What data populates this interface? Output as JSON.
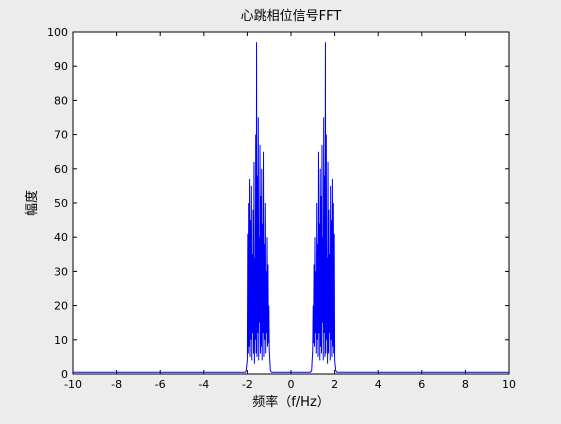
{
  "chart_data": {
    "type": "line",
    "title": "心跳相位信号FFT",
    "xlabel": "频率（f/Hz）",
    "ylabel": "幅度",
    "xlim": [
      -10,
      10
    ],
    "ylim": [
      0,
      100
    ],
    "xticks": [
      -10,
      -8,
      -6,
      -4,
      -2,
      0,
      2,
      4,
      6,
      8,
      10
    ],
    "yticks": [
      0,
      10,
      20,
      30,
      40,
      50,
      60,
      70,
      80,
      90,
      100
    ],
    "grid": false,
    "line_color": "#0000ff",
    "series": [
      {
        "x": [
          -10,
          -2.1,
          -2.05,
          -2.0,
          -1.98,
          -1.96,
          -1.94,
          -1.92,
          -1.9,
          -1.88,
          -1.86,
          -1.84,
          -1.82,
          -1.8,
          -1.78,
          -1.76,
          -1.74,
          -1.72,
          -1.7,
          -1.68,
          -1.66,
          -1.64,
          -1.62,
          -1.6,
          -1.58,
          -1.56,
          -1.54,
          -1.52,
          -1.5,
          -1.48,
          -1.46,
          -1.44,
          -1.42,
          -1.4,
          -1.38,
          -1.36,
          -1.34,
          -1.32,
          -1.3,
          -1.28,
          -1.26,
          -1.24,
          -1.22,
          -1.2,
          -1.18,
          -1.16,
          -1.14,
          -1.12,
          -1.1,
          -1.08,
          -1.06,
          -1.04,
          -1.02,
          -1.0,
          -0.95,
          -0.9,
          0.9,
          0.95,
          1.0,
          1.02,
          1.04,
          1.06,
          1.08,
          1.1,
          1.12,
          1.14,
          1.16,
          1.18,
          1.2,
          1.22,
          1.24,
          1.26,
          1.28,
          1.3,
          1.32,
          1.34,
          1.36,
          1.38,
          1.4,
          1.42,
          1.44,
          1.46,
          1.48,
          1.5,
          1.52,
          1.54,
          1.56,
          1.58,
          1.6,
          1.62,
          1.64,
          1.66,
          1.68,
          1.7,
          1.72,
          1.74,
          1.76,
          1.78,
          1.8,
          1.82,
          1.84,
          1.86,
          1.88,
          1.9,
          1.92,
          1.94,
          1.96,
          1.98,
          2.0,
          2.05,
          2.1,
          10
        ],
        "y": [
          0.5,
          0.5,
          1,
          4,
          41,
          6,
          50,
          8,
          57,
          5,
          45,
          10,
          55,
          4,
          35,
          12,
          48,
          6,
          62,
          3,
          34,
          10,
          70,
          6,
          97,
          5,
          58,
          12,
          75,
          4,
          40,
          15,
          67,
          6,
          52,
          8,
          60,
          4,
          44,
          12,
          65,
          5,
          38,
          10,
          50,
          6,
          30,
          12,
          40,
          8,
          32,
          9,
          20,
          7,
          1,
          0.5,
          0.5,
          1,
          7,
          20,
          9,
          32,
          8,
          40,
          12,
          30,
          6,
          50,
          10,
          38,
          5,
          65,
          12,
          44,
          4,
          60,
          8,
          52,
          6,
          67,
          15,
          40,
          4,
          75,
          12,
          58,
          5,
          97,
          6,
          70,
          10,
          34,
          3,
          62,
          6,
          48,
          12,
          35,
          4,
          55,
          10,
          45,
          5,
          57,
          8,
          50,
          6,
          41,
          4,
          1,
          0.5,
          0.5
        ]
      }
    ]
  }
}
